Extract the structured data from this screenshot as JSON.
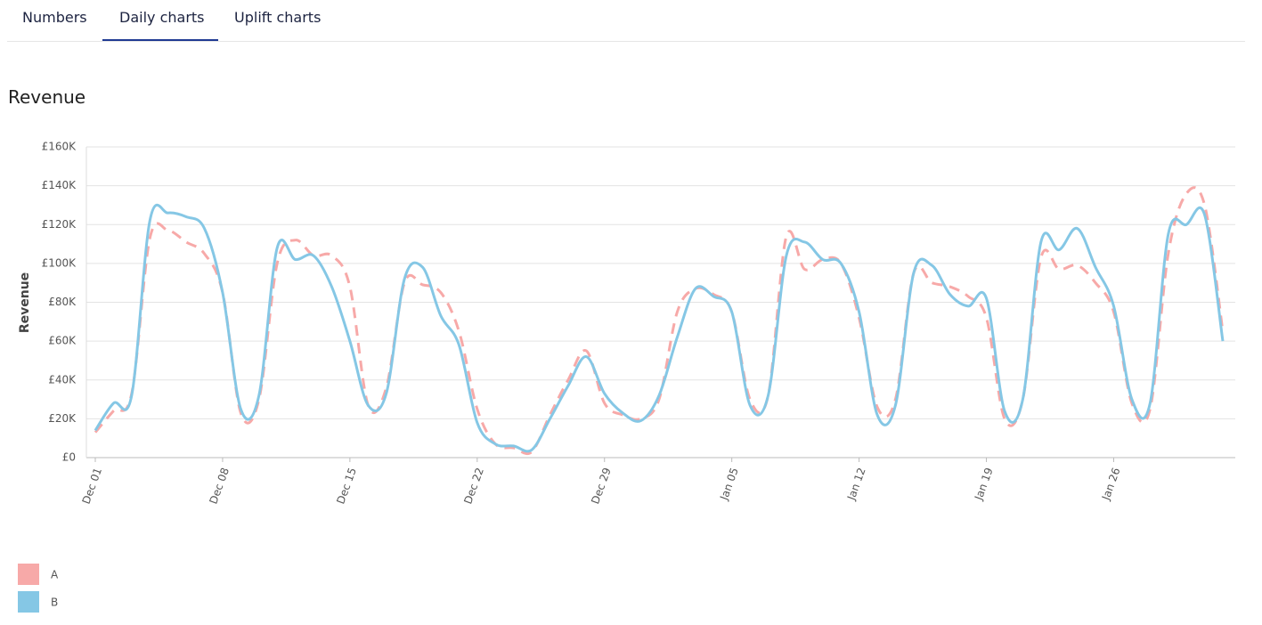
{
  "tabs": [
    "Numbers",
    "Daily charts",
    "Uplift charts"
  ],
  "chart_data": {
    "type": "line",
    "title": "Revenue",
    "y_label": "Revenue",
    "categories": [
      "Dec 01",
      null,
      null,
      null,
      null,
      null,
      null,
      "Dec 08",
      null,
      null,
      null,
      null,
      null,
      null,
      "Dec 15",
      null,
      null,
      null,
      null,
      null,
      null,
      "Dec 22",
      null,
      null,
      null,
      null,
      null,
      null,
      "Dec 29",
      null,
      null,
      null,
      null,
      null,
      null,
      "Jan 05",
      null,
      null,
      null,
      null,
      null,
      null,
      "Jan 12",
      null,
      null,
      null,
      null,
      null,
      null,
      "Jan 19",
      null,
      null,
      null,
      null,
      null,
      null,
      "Jan 26",
      null,
      null,
      null,
      null,
      null,
      null
    ],
    "series": [
      {
        "name": "A",
        "color": "#f7a9a8",
        "dashed": true,
        "values": [
          13000,
          24000,
          33000,
          113000,
          117000,
          111000,
          105000,
          85000,
          23000,
          30000,
          100000,
          112000,
          104000,
          104000,
          88000,
          27000,
          36000,
          90000,
          89000,
          85000,
          65000,
          25000,
          7000,
          5000,
          3000,
          22000,
          40000,
          55000,
          28000,
          22000,
          20000,
          30000,
          75000,
          87000,
          84000,
          75000,
          30000,
          32000,
          114000,
          97000,
          102000,
          100000,
          72000,
          26000,
          30000,
          95000,
          90000,
          88000,
          83000,
          72000,
          20000,
          30000,
          103000,
          97000,
          99000,
          90000,
          75000,
          28000,
          25000,
          105000,
          136000,
          130000,
          65000
        ]
      },
      {
        "name": "B",
        "color": "#85c7e5",
        "dashed": false,
        "values": [
          14000,
          28000,
          32000,
          122000,
          126000,
          124000,
          118000,
          85000,
          25000,
          32000,
          108000,
          102000,
          104000,
          88000,
          60000,
          27000,
          33000,
          92000,
          98000,
          73000,
          58000,
          18000,
          7000,
          6000,
          4000,
          20000,
          37000,
          52000,
          33000,
          23000,
          19000,
          32000,
          62000,
          87000,
          83000,
          75000,
          27000,
          32000,
          104000,
          111000,
          102000,
          100000,
          75000,
          22000,
          27000,
          95000,
          99000,
          84000,
          78000,
          82000,
          24000,
          30000,
          111000,
          107000,
          118000,
          98000,
          78000,
          30000,
          28000,
          115000,
          120000,
          125000,
          60000
        ]
      }
    ],
    "ylim": [
      0,
      160000
    ],
    "yticks": [
      {
        "value": 0,
        "label": "£0"
      },
      {
        "value": 20000,
        "label": "£20K"
      },
      {
        "value": 40000,
        "label": "£40K"
      },
      {
        "value": 60000,
        "label": "£60K"
      },
      {
        "value": 80000,
        "label": "£80K"
      },
      {
        "value": 100000,
        "label": "£100K"
      },
      {
        "value": 120000,
        "label": "£120K"
      },
      {
        "value": 140000,
        "label": "£140K"
      },
      {
        "value": 160000,
        "label": "£160K"
      }
    ],
    "grid": true,
    "legend": "bottom-left"
  }
}
